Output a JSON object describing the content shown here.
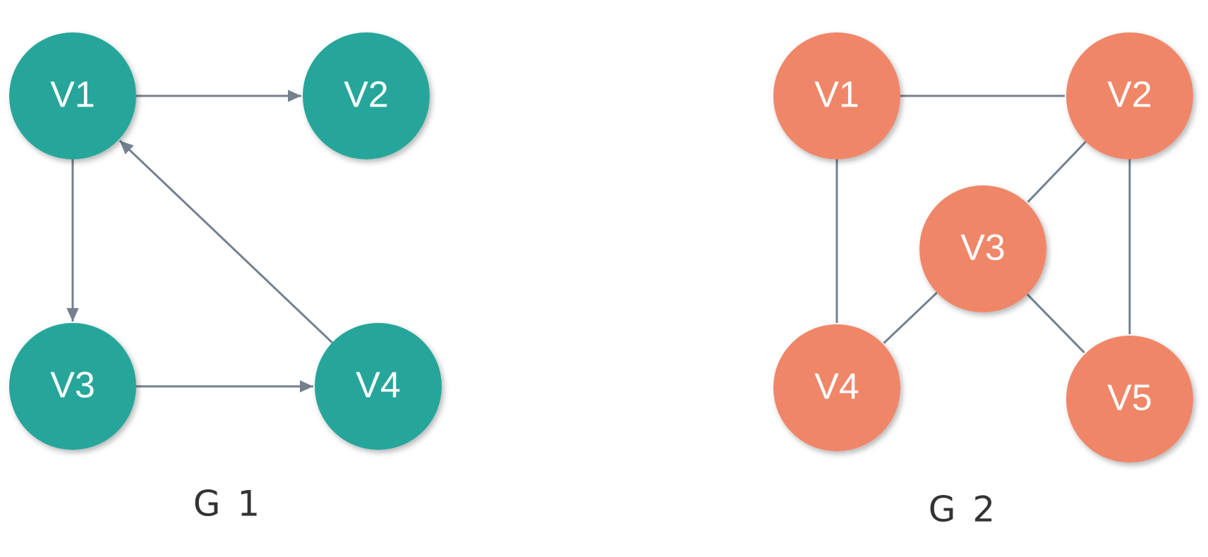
{
  "colors": {
    "edge": "#74808f",
    "g1_node": "#26a69a",
    "g2_node": "#f08668",
    "node_text": "#ffffff",
    "caption_text": "#333333"
  },
  "graphs": [
    {
      "id": "g1",
      "caption": "G 1",
      "directed": true,
      "nodes": [
        {
          "id": "V1",
          "label": "V1"
        },
        {
          "id": "V2",
          "label": "V2"
        },
        {
          "id": "V3",
          "label": "V3"
        },
        {
          "id": "V4",
          "label": "V4"
        }
      ],
      "edges": [
        {
          "from": "V1",
          "to": "V2"
        },
        {
          "from": "V1",
          "to": "V3"
        },
        {
          "from": "V3",
          "to": "V4"
        },
        {
          "from": "V4",
          "to": "V1"
        }
      ]
    },
    {
      "id": "g2",
      "caption": "G 2",
      "directed": false,
      "nodes": [
        {
          "id": "V1",
          "label": "V1"
        },
        {
          "id": "V2",
          "label": "V2"
        },
        {
          "id": "V3",
          "label": "V3"
        },
        {
          "id": "V4",
          "label": "V4"
        },
        {
          "id": "V5",
          "label": "V5"
        }
      ],
      "edges": [
        {
          "from": "V1",
          "to": "V2"
        },
        {
          "from": "V1",
          "to": "V4"
        },
        {
          "from": "V2",
          "to": "V3"
        },
        {
          "from": "V2",
          "to": "V5"
        },
        {
          "from": "V3",
          "to": "V4"
        },
        {
          "from": "V3",
          "to": "V5"
        }
      ]
    }
  ]
}
